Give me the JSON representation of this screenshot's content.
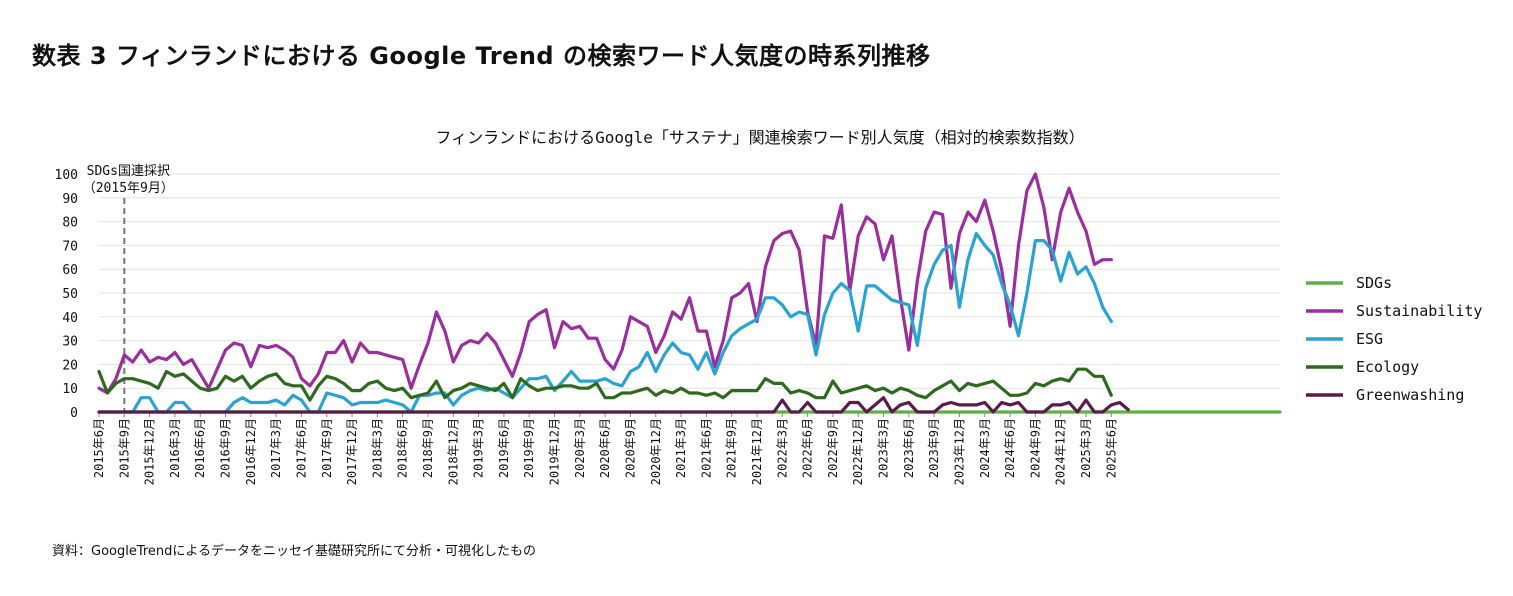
{
  "page_title": "数表 3 フィンランドにおける Google Trend の検索ワード人気度の時系列推移",
  "source_note": "資料：GoogleTrendによるデータをニッセイ基礎研究所にて分析・可視化したもの",
  "chart_data": {
    "type": "line",
    "title": "フィンランドにおけるGoogle「サステナ」関連検索ワード別人気度（相対的検索数指数）",
    "xlabel": "",
    "ylabel": "",
    "ylim": [
      0,
      100
    ],
    "yticks": [
      0,
      10,
      20,
      30,
      40,
      50,
      60,
      70,
      80,
      90,
      100
    ],
    "grid": true,
    "legend_position": "right",
    "x_tick_labels": [
      "2015年6月",
      "2015年9月",
      "2015年12月",
      "2016年3月",
      "2016年6月",
      "2016年9月",
      "2016年12月",
      "2017年3月",
      "2017年6月",
      "2017年9月",
      "2017年12月",
      "2018年3月",
      "2018年6月",
      "2018年9月",
      "2018年12月",
      "2019年3月",
      "2019年6月",
      "2019年9月",
      "2019年12月",
      "2020年3月",
      "2020年6月",
      "2020年9月",
      "2020年12月",
      "2021年3月",
      "2021年6月",
      "2021年9月",
      "2021年12月",
      "2022年3月",
      "2022年6月",
      "2022年9月",
      "2022年12月",
      "2023年3月",
      "2023年6月",
      "2023年9月",
      "2023年12月",
      "2024年3月",
      "2024年6月",
      "2024年9月",
      "2024年12月",
      "2025年3月",
      "2025年6月"
    ],
    "annotation": {
      "line1": "SDGs国連採択",
      "line2": "（2015年9月）",
      "month_index": 3
    },
    "series": [
      {
        "name": "SDGs",
        "color": "#5db044",
        "values": [
          0,
          0,
          0,
          0,
          0,
          0,
          0,
          0,
          0,
          0,
          0,
          0,
          0,
          0,
          0,
          0,
          0,
          0,
          0,
          0,
          0,
          0,
          0,
          0,
          0,
          0,
          0,
          0,
          0,
          0,
          0,
          0,
          0,
          0,
          0,
          0,
          0,
          0,
          0,
          0,
          0,
          0,
          0,
          0,
          0,
          0,
          0,
          0,
          0,
          0,
          0,
          0,
          0,
          0,
          0,
          0,
          0,
          0,
          0,
          0,
          0,
          0,
          0,
          0,
          0,
          0,
          0,
          0,
          0,
          0,
          0,
          0,
          0,
          0,
          0,
          0,
          0,
          0,
          0,
          0,
          0,
          0,
          0,
          0,
          0,
          0,
          0,
          0,
          0,
          0,
          0,
          0,
          0,
          0,
          0,
          0,
          0,
          0,
          0,
          0,
          0,
          0,
          0,
          0,
          0,
          0,
          0,
          0,
          0,
          0,
          0,
          0,
          0,
          0,
          0,
          0,
          0,
          0,
          0,
          0,
          0,
          0,
          0,
          0,
          0,
          0,
          0,
          0,
          0,
          0,
          0,
          0,
          0,
          0,
          0,
          0,
          0,
          0,
          0,
          0,
          0
        ]
      },
      {
        "name": "Sustainability",
        "color": "#9b2d9f",
        "values": [
          10,
          8,
          14,
          24,
          21,
          26,
          21,
          23,
          22,
          25,
          20,
          22,
          16,
          10,
          18,
          26,
          29,
          28,
          19,
          28,
          27,
          28,
          26,
          23,
          14,
          11,
          16,
          25,
          25,
          30,
          21,
          29,
          25,
          25,
          24,
          23,
          22,
          10,
          20,
          29,
          42,
          34,
          21,
          28,
          30,
          29,
          33,
          29,
          22,
          15,
          25,
          38,
          41,
          43,
          27,
          38,
          35,
          36,
          31,
          31,
          22,
          18,
          26,
          40,
          38,
          36,
          25,
          32,
          42,
          39,
          48,
          34,
          34,
          19,
          30,
          48,
          50,
          54,
          38,
          61,
          72,
          75,
          76,
          68,
          42,
          28,
          74,
          73,
          87,
          51,
          74,
          82,
          79,
          64,
          74,
          48,
          26,
          55,
          76,
          84,
          83,
          52,
          75,
          84,
          80,
          89,
          76,
          60,
          36,
          70,
          93,
          100,
          86,
          64,
          84,
          94,
          84,
          76,
          62,
          64,
          64
        ]
      },
      {
        "name": "ESG",
        "color": "#29a3d4",
        "values": [
          0,
          0,
          0,
          0,
          0,
          6,
          6,
          0,
          0,
          4,
          4,
          0,
          0,
          0,
          0,
          0,
          4,
          6,
          4,
          4,
          4,
          5,
          3,
          7,
          5,
          0,
          0,
          8,
          7,
          6,
          3,
          4,
          4,
          4,
          5,
          4,
          3,
          0,
          7,
          7,
          8,
          8,
          3,
          7,
          9,
          10,
          9,
          10,
          8,
          6,
          10,
          14,
          14,
          15,
          9,
          13,
          17,
          13,
          13,
          13,
          14,
          12,
          11,
          17,
          19,
          25,
          17,
          24,
          29,
          25,
          24,
          18,
          25,
          16,
          25,
          32,
          35,
          37,
          39,
          48,
          48,
          45,
          40,
          42,
          41,
          24,
          41,
          50,
          54,
          51,
          34,
          53,
          53,
          50,
          47,
          46,
          45,
          28,
          52,
          62,
          68,
          70,
          44,
          64,
          75,
          70,
          66,
          54,
          45,
          32,
          50,
          72,
          72,
          68,
          55,
          67,
          58,
          61,
          54,
          44,
          38
        ]
      },
      {
        "name": "Ecology",
        "color": "#2d6a1f",
        "values": [
          17,
          8,
          12,
          14,
          14,
          13,
          12,
          10,
          17,
          15,
          16,
          13,
          10,
          9,
          10,
          15,
          13,
          15,
          10,
          13,
          15,
          16,
          12,
          11,
          11,
          5,
          11,
          15,
          14,
          12,
          9,
          9,
          12,
          13,
          10,
          9,
          10,
          6,
          7,
          8,
          13,
          6,
          9,
          10,
          12,
          11,
          10,
          9,
          12,
          6,
          14,
          11,
          9,
          10,
          10,
          11,
          11,
          10,
          10,
          12,
          6,
          6,
          8,
          8,
          9,
          10,
          7,
          9,
          8,
          10,
          8,
          8,
          7,
          8,
          6,
          9,
          9,
          9,
          9,
          14,
          12,
          12,
          8,
          9,
          8,
          6,
          6,
          13,
          8,
          9,
          10,
          11,
          9,
          10,
          8,
          10,
          9,
          7,
          6,
          9,
          11,
          13,
          9,
          12,
          11,
          12,
          13,
          10,
          7,
          7,
          8,
          12,
          11,
          13,
          14,
          13,
          18,
          18,
          15,
          15,
          7
        ]
      },
      {
        "name": "Greenwashing",
        "color": "#5a1a4a",
        "values": [
          0,
          0,
          0,
          0,
          0,
          0,
          0,
          0,
          0,
          0,
          0,
          0,
          0,
          0,
          0,
          0,
          0,
          0,
          0,
          0,
          0,
          0,
          0,
          0,
          0,
          0,
          0,
          0,
          0,
          0,
          0,
          0,
          0,
          0,
          0,
          0,
          0,
          0,
          0,
          0,
          0,
          0,
          0,
          0,
          0,
          0,
          0,
          0,
          0,
          0,
          0,
          0,
          0,
          0,
          0,
          0,
          0,
          0,
          0,
          0,
          0,
          0,
          0,
          0,
          0,
          0,
          0,
          0,
          0,
          0,
          0,
          0,
          0,
          0,
          0,
          0,
          0,
          0,
          0,
          0,
          0,
          5,
          0,
          0,
          4,
          0,
          0,
          0,
          0,
          4,
          4,
          0,
          3,
          6,
          0,
          3,
          4,
          0,
          0,
          0,
          3,
          4,
          3,
          3,
          3,
          4,
          0,
          4,
          3,
          4,
          0,
          0,
          0,
          3,
          3,
          4,
          0,
          5,
          0,
          0,
          3,
          4,
          1
        ]
      }
    ]
  }
}
